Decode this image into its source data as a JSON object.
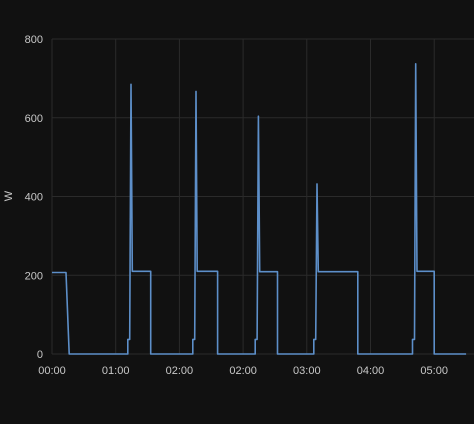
{
  "chart_data": {
    "type": "line",
    "ylabel": "W",
    "xlabel": "",
    "ylim": [
      0,
      800
    ],
    "yticks": [
      0,
      200,
      400,
      600,
      800
    ],
    "xticks_labels": [
      "00:00",
      "01:00",
      "02:00",
      "02:00",
      "03:00",
      "04:00",
      "05:00"
    ],
    "grid": true,
    "colors": {
      "series": "#5d8fc9",
      "background": "#111111",
      "grid": "#2b2b2b",
      "text": "#c8c8c8"
    },
    "series": [
      {
        "name": "",
        "points": [
          [
            0.0,
            207
          ],
          [
            0.22,
            207
          ],
          [
            0.27,
            0
          ],
          [
            1.19,
            0
          ],
          [
            1.19,
            37
          ],
          [
            1.22,
            37
          ],
          [
            1.24,
            685
          ],
          [
            1.26,
            210
          ],
          [
            1.55,
            210
          ],
          [
            1.55,
            0
          ],
          [
            2.21,
            0
          ],
          [
            2.21,
            37
          ],
          [
            2.24,
            37
          ],
          [
            2.26,
            667
          ],
          [
            2.28,
            210
          ],
          [
            2.6,
            210
          ],
          [
            2.6,
            0
          ],
          [
            3.19,
            0
          ],
          [
            3.19,
            37
          ],
          [
            3.22,
            37
          ],
          [
            3.24,
            604
          ],
          [
            3.26,
            209
          ],
          [
            3.54,
            209
          ],
          [
            3.54,
            0
          ],
          [
            4.11,
            0
          ],
          [
            4.11,
            37
          ],
          [
            4.14,
            37
          ],
          [
            4.16,
            432
          ],
          [
            4.18,
            209
          ],
          [
            4.8,
            209
          ],
          [
            4.8,
            0
          ],
          [
            5.66,
            0
          ],
          [
            5.66,
            37
          ],
          [
            5.69,
            37
          ],
          [
            5.71,
            737
          ],
          [
            5.73,
            210
          ],
          [
            6.0,
            210
          ],
          [
            6.0,
            0
          ],
          [
            6.5,
            0
          ]
        ]
      }
    ]
  }
}
